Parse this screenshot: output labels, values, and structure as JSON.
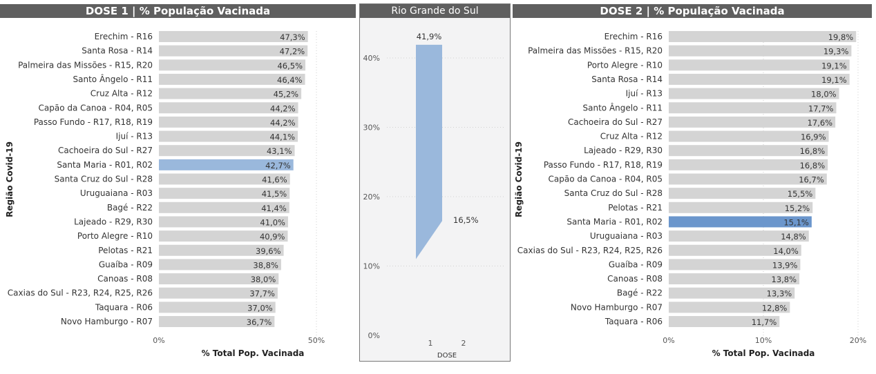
{
  "chart_data": [
    {
      "type": "bar",
      "title": "DOSE 1 | % População Vacinada",
      "xlabel": "% Total Pop. Vacinada",
      "ylabel": "Região Covid-19",
      "xlim": [
        0,
        50
      ],
      "ticks": [
        "0%",
        "50%"
      ],
      "highlight_color": "#9ab8dc",
      "bar_color": "#d4d4d4",
      "highlight": "Santa Maria - R01, R02",
      "categories": [
        "Erechim - R16",
        "Santa Rosa - R14",
        "Palmeira das Missões - R15, R20",
        "Santo Ângelo - R11",
        "Cruz Alta - R12",
        "Capão da Canoa - R04, R05",
        "Passo Fundo - R17, R18, R19",
        "Ijuí - R13",
        "Cachoeira do Sul - R27",
        "Santa Maria - R01, R02",
        "Santa Cruz do Sul - R28",
        "Uruguaiana - R03",
        "Bagé - R22",
        "Lajeado - R29, R30",
        "Porto Alegre - R10",
        "Pelotas - R21",
        "Guaíba - R09",
        "Canoas - R08",
        "Caxias do Sul - R23, R24, R25, R26",
        "Taquara - R06",
        "Novo Hamburgo - R07"
      ],
      "values": [
        47.3,
        47.2,
        46.5,
        46.4,
        45.2,
        44.2,
        44.2,
        44.1,
        43.1,
        42.7,
        41.6,
        41.5,
        41.4,
        41.0,
        40.9,
        39.6,
        38.8,
        38.0,
        37.7,
        37.0,
        36.7
      ],
      "labels": [
        "47,3%",
        "47,2%",
        "46,5%",
        "46,4%",
        "45,2%",
        "44,2%",
        "44,2%",
        "44,1%",
        "43,1%",
        "42,7%",
        "41,6%",
        "41,5%",
        "41,4%",
        "41,0%",
        "40,9%",
        "39,6%",
        "38,8%",
        "38,0%",
        "37,7%",
        "37,0%",
        "36,7%"
      ]
    },
    {
      "type": "area",
      "title": "Rio Grande do Sul",
      "xlabel": "DOSE",
      "categories": [
        "1",
        "2"
      ],
      "values": [
        41.9,
        16.5
      ],
      "labels": [
        "41,9%",
        "16,5%"
      ],
      "ylim": [
        0,
        45
      ],
      "yticks": [
        0,
        10,
        20,
        30,
        40
      ],
      "ytick_labels": [
        "0%",
        "10%",
        "20%",
        "30%",
        "40%"
      ],
      "color": "#9ab8dc"
    },
    {
      "type": "bar",
      "title": "DOSE 2 | % População Vacinada",
      "xlabel": "% Total Pop. Vacinada",
      "ylabel": "Região Covid-19",
      "xlim": [
        0,
        20
      ],
      "ticks": [
        "0%",
        "10%",
        "20%"
      ],
      "highlight_color": "#6b96cc",
      "bar_color": "#d4d4d4",
      "highlight": "Santa Maria - R01, R02",
      "categories": [
        "Erechim - R16",
        "Palmeira das Missões - R15, R20",
        "Porto Alegre - R10",
        "Santa Rosa - R14",
        "Ijuí - R13",
        "Santo Ângelo - R11",
        "Cachoeira do Sul - R27",
        "Cruz Alta - R12",
        "Lajeado - R29, R30",
        "Passo Fundo - R17, R18, R19",
        "Capão da Canoa - R04, R05",
        "Santa Cruz do Sul - R28",
        "Pelotas - R21",
        "Santa Maria - R01, R02",
        "Uruguaiana - R03",
        "Caxias do Sul - R23, R24, R25, R26",
        "Guaíba - R09",
        "Canoas - R08",
        "Bagé - R22",
        "Novo Hamburgo - R07",
        "Taquara - R06"
      ],
      "values": [
        19.8,
        19.3,
        19.1,
        19.1,
        18.0,
        17.7,
        17.6,
        16.9,
        16.8,
        16.8,
        16.7,
        15.5,
        15.2,
        15.1,
        14.8,
        14.0,
        13.9,
        13.8,
        13.3,
        12.8,
        11.7
      ],
      "labels": [
        "19,8%",
        "19,3%",
        "19,1%",
        "19,1%",
        "18,0%",
        "17,7%",
        "17,6%",
        "16,9%",
        "16,8%",
        "16,8%",
        "16,7%",
        "15,5%",
        "15,2%",
        "15,1%",
        "14,8%",
        "14,0%",
        "13,9%",
        "13,8%",
        "13,3%",
        "12,8%",
        "11,7%"
      ]
    }
  ]
}
